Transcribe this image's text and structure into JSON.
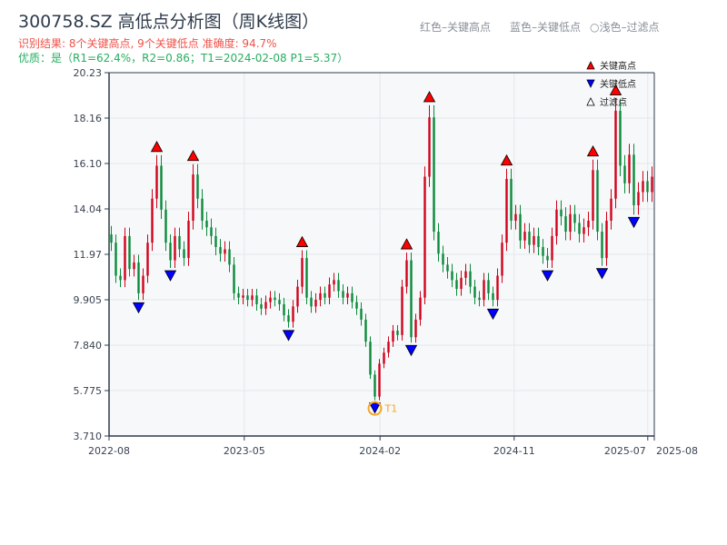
{
  "title": "300758.SZ 高低点分析图（周K线图）",
  "subtitle_result": "识别结果: 8个关键高点, 9个关键低点  准确度: 94.7%",
  "subtitle_quality": "优质：是（R1=62.4%，R2=0.86；T1=2024-02-08 P1=5.37）",
  "hints": [
    "红色–关键高点",
    "蓝色–关键低点",
    "○浅色–过滤点"
  ],
  "colors": {
    "up": "#d0021b",
    "down": "#0a8a3a",
    "high_marker": "#ff0000",
    "low_marker": "#0000ff",
    "t1": "#f5a623",
    "grid": "#e3e7ec",
    "plot_bg": "#f7f8fa"
  },
  "chart_data": {
    "type": "candlestick",
    "title": "300758.SZ 高低点分析图（周K线图）",
    "ylim": [
      3.71,
      20.23
    ],
    "yticks": [
      "3.710",
      "5.775",
      "7.840",
      "9.905",
      "11.97",
      "14.04",
      "16.10",
      "18.16",
      "20.23"
    ],
    "xticks": [
      "2022-08",
      "2023-05",
      "2024-02",
      "2024-11",
      "2025-07",
      "2025-08"
    ],
    "xtick_fraction": [
      0,
      0.248,
      0.497,
      0.743,
      0.988,
      1.0
    ],
    "grid": true,
    "legend": {
      "placement": "top-right",
      "entries": [
        "关键高点",
        "关键低点",
        "过滤点"
      ]
    },
    "closes": [
      12.5,
      11.0,
      10.8,
      12.8,
      11.3,
      11.6,
      10.2,
      11.0,
      12.5,
      14.5,
      16.0,
      14.0,
      12.5,
      11.7,
      12.8,
      12.2,
      11.8,
      13.5,
      15.6,
      14.5,
      13.5,
      13.2,
      12.8,
      12.3,
      12.0,
      12.2,
      11.5,
      10.2,
      10.0,
      10.1,
      9.9,
      10.1,
      9.7,
      9.5,
      9.8,
      10.0,
      9.9,
      9.7,
      9.2,
      8.9,
      9.6,
      10.5,
      11.8,
      10.0,
      9.6,
      9.9,
      10.2,
      10.0,
      10.6,
      10.8,
      10.3,
      10.0,
      10.2,
      9.8,
      9.5,
      9.0,
      8.0,
      6.5,
      5.5,
      7.0,
      7.5,
      8.0,
      8.5,
      8.3,
      10.5,
      11.7,
      8.2,
      9.0,
      10.0,
      15.5,
      18.2,
      13.0,
      12.0,
      11.5,
      11.2,
      10.8,
      10.4,
      10.9,
      11.2,
      10.5,
      10.0,
      9.9,
      10.8,
      10.2,
      9.9,
      11.0,
      12.5,
      15.4,
      13.5,
      13.8,
      12.6,
      13.0,
      12.4,
      12.8,
      12.3,
      11.9,
      11.7,
      12.8,
      14.0,
      13.7,
      13.0,
      13.8,
      13.4,
      12.9,
      13.2,
      13.5,
      15.8,
      13.0,
      11.8,
      13.5,
      14.5,
      18.5,
      16.0,
      15.2,
      16.5,
      14.2,
      14.8,
      15.3,
      14.8,
      15.5
    ],
    "key_highs": [
      10,
      18,
      42,
      65,
      70,
      87,
      106,
      111
    ],
    "key_lows": [
      6,
      13,
      39,
      58,
      66,
      84,
      96,
      108,
      115
    ],
    "t1": {
      "label": "T1",
      "date": "2024-02-08",
      "price": 5.37,
      "index": 58
    }
  }
}
